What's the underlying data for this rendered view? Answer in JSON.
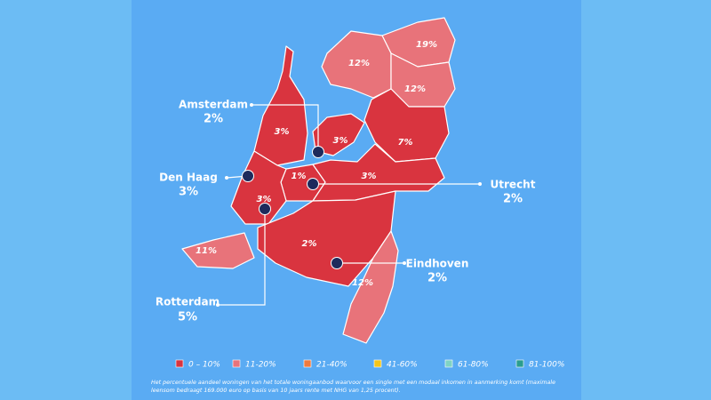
{
  "map": {
    "regions": [
      {
        "label": "19%",
        "color": "#e8737a"
      },
      {
        "label": "12%",
        "color": "#e8737a"
      },
      {
        "label": "12%",
        "color": "#e8737a"
      },
      {
        "label": "7%",
        "color": "#d9343f"
      },
      {
        "label": "3%",
        "color": "#d9343f"
      },
      {
        "label": "3%",
        "color": "#d9343f"
      },
      {
        "label": "1%",
        "color": "#d9343f"
      },
      {
        "label": "3%",
        "color": "#d9343f"
      },
      {
        "label": "3%",
        "color": "#d9343f"
      },
      {
        "label": "11%",
        "color": "#e8737a"
      },
      {
        "label": "2%",
        "color": "#d9343f"
      },
      {
        "label": "12%",
        "color": "#e8737a"
      }
    ],
    "cities": [
      {
        "name": "Amsterdam",
        "value": "2%"
      },
      {
        "name": "Den Haag",
        "value": "3%"
      },
      {
        "name": "Utrecht",
        "value": "2%"
      },
      {
        "name": "Rotterdam",
        "value": "5%"
      },
      {
        "name": "Eindhoven",
        "value": "2%"
      }
    ],
    "legend": [
      {
        "label": "0 – 10%",
        "color": "#d9343f"
      },
      {
        "label": "11-20%",
        "color": "#e8737a"
      },
      {
        "label": "21-40%",
        "color": "#f07b3f"
      },
      {
        "label": "41-60%",
        "color": "#f5c518"
      },
      {
        "label": "61-80%",
        "color": "#7fd3c4"
      },
      {
        "label": "81-100%",
        "color": "#2a9d8f"
      }
    ],
    "footnote": [
      "Het percentuele aandeel woningen van het totale woningaanbod waarvoor een single met een modaal inkomen in aanmerking komt (maximale",
      "leensom bedraagt 169.000 euro op basis van 10 jaars rente met NHG van 1,25 procent)."
    ]
  }
}
